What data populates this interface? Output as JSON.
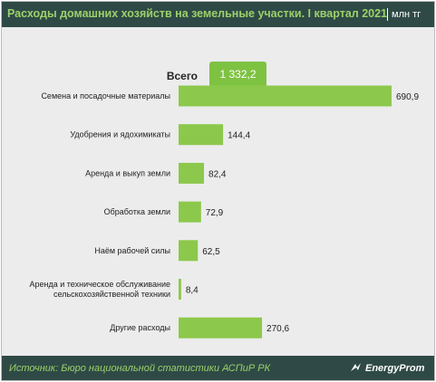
{
  "header": {
    "title": "Расходы домашних хозяйств на земельные участки. I квартал 2021",
    "unit": "млн тг"
  },
  "total": {
    "label": "Всего",
    "value": "1 332,2"
  },
  "chart_data": {
    "type": "bar",
    "orientation": "horizontal",
    "categories": [
      [
        "Семена и посадочные материалы"
      ],
      [
        "Удобрения и ядохимикаты"
      ],
      [
        "Аренда и выкуп земли"
      ],
      [
        "Обработка земли"
      ],
      [
        "Наём рабочей силы"
      ],
      [
        "Аренда и техническое обслуживание",
        "сельскохозяйственной техники"
      ],
      [
        "Другие расходы"
      ]
    ],
    "values": [
      690.9,
      144.4,
      82.4,
      72.9,
      62.5,
      8.4,
      270.6
    ],
    "value_labels": [
      "690,9",
      "144,4",
      "82,4",
      "72,9",
      "62,5",
      "8,4",
      "270,6"
    ],
    "bar_color": "#8cc84b",
    "grid": false,
    "legend": "none"
  },
  "footer": {
    "source": "Источник: Бюро национальной  статистики АСПиР РК",
    "brand": "EnergyProm"
  },
  "colors": {
    "header_bg": "#2f4a46",
    "title_text": "#9bd16a",
    "plot_bg": "#ececec",
    "total_box": "#7ec242"
  }
}
